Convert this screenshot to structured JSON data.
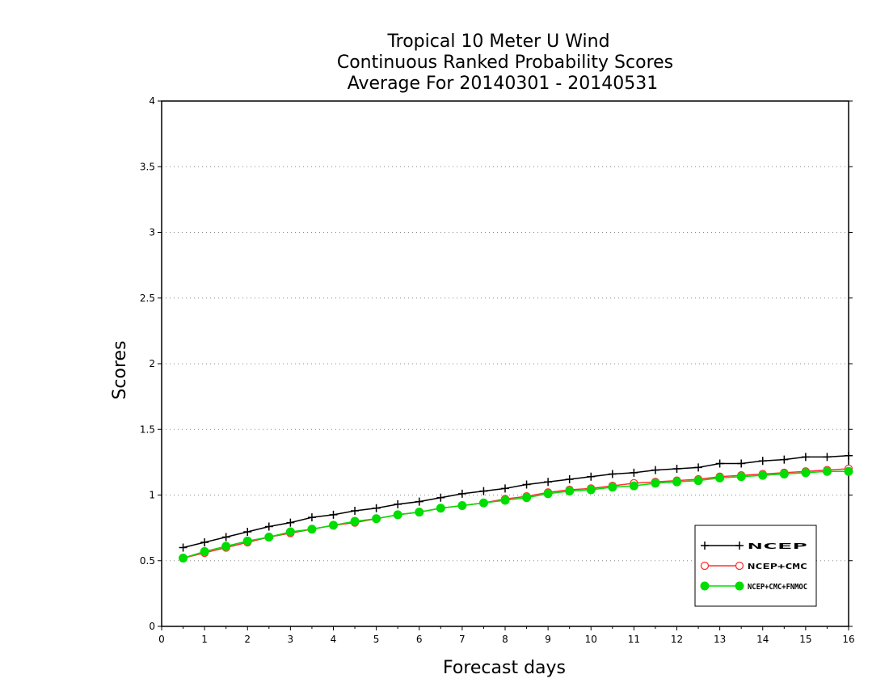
{
  "chart_data": {
    "type": "line",
    "title": [
      "Tropical 10 Meter U Wind",
      "Continuous Ranked Probability Scores",
      "Average For 20140301 - 20140531"
    ],
    "xlabel": "Forecast days",
    "ylabel": "Scores",
    "xlim": [
      0,
      16
    ],
    "ylim": [
      0,
      4
    ],
    "xticks": [
      "0",
      "1",
      "2",
      "3",
      "4",
      "5",
      "6",
      "7",
      "8",
      "9",
      "10",
      "11",
      "12",
      "13",
      "14",
      "15",
      "16"
    ],
    "yticks": [
      "0",
      "0.5",
      "1",
      "1.5",
      "2",
      "2.5",
      "3",
      "3.5",
      "4"
    ],
    "grid": "horizontal dotted",
    "legend_position": "bottom-right",
    "x": [
      0.5,
      1,
      1.5,
      2,
      2.5,
      3,
      3.5,
      4,
      4.5,
      5,
      5.5,
      6,
      6.5,
      7,
      7.5,
      8,
      8.5,
      9,
      9.5,
      10,
      10.5,
      11,
      11.5,
      12,
      12.5,
      13,
      13.5,
      14,
      14.5,
      15,
      15.5,
      16
    ],
    "series": [
      {
        "name": "NCEP",
        "color": "#000000",
        "marker": "plus",
        "values": [
          0.6,
          0.64,
          0.68,
          0.72,
          0.76,
          0.79,
          0.83,
          0.85,
          0.88,
          0.9,
          0.93,
          0.95,
          0.98,
          1.01,
          1.03,
          1.05,
          1.08,
          1.1,
          1.12,
          1.14,
          1.16,
          1.17,
          1.19,
          1.2,
          1.21,
          1.24,
          1.24,
          1.26,
          1.27,
          1.29,
          1.29,
          1.3
        ]
      },
      {
        "name": "NCEP+CMC",
        "color": "#ff3030",
        "marker": "open-circle",
        "values": [
          0.52,
          0.56,
          0.6,
          0.64,
          0.68,
          0.71,
          0.74,
          0.77,
          0.79,
          0.82,
          0.85,
          0.87,
          0.9,
          0.92,
          0.94,
          0.97,
          0.99,
          1.02,
          1.04,
          1.05,
          1.07,
          1.09,
          1.1,
          1.11,
          1.12,
          1.14,
          1.15,
          1.16,
          1.17,
          1.18,
          1.19,
          1.2
        ]
      },
      {
        "name": "NCEP+CMC+FNMOC",
        "color": "#00dd00",
        "marker": "filled-circle",
        "values": [
          0.52,
          0.57,
          0.61,
          0.65,
          0.68,
          0.72,
          0.74,
          0.77,
          0.8,
          0.82,
          0.85,
          0.87,
          0.9,
          0.92,
          0.94,
          0.96,
          0.98,
          1.01,
          1.03,
          1.04,
          1.06,
          1.07,
          1.09,
          1.1,
          1.11,
          1.13,
          1.14,
          1.15,
          1.16,
          1.17,
          1.18,
          1.18
        ]
      }
    ]
  }
}
